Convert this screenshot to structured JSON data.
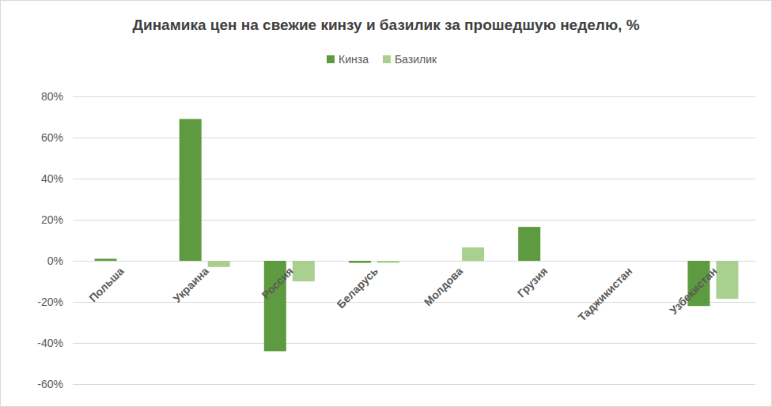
{
  "chart_data": {
    "type": "bar",
    "title": "Динамика цен на свежие кинзу и базилик за прошедшую неделю, %",
    "categories": [
      "Польша",
      "Украина",
      "Россия",
      "Беларусь",
      "Молдова",
      "Грузия",
      "Таджикистан",
      "Узбекистан"
    ],
    "series": [
      {
        "name": "Кинза",
        "color": "#5e9a3f",
        "values": [
          1,
          69,
          -44,
          -1,
          0,
          16.5,
          0,
          -22
        ]
      },
      {
        "name": "Базилик",
        "color": "#a9d08e",
        "values": [
          0,
          -3,
          -10,
          -1,
          6.5,
          0,
          0,
          -18.5
        ]
      }
    ],
    "ylim": [
      -60,
      80
    ],
    "yticks": [
      {
        "value": -60,
        "label": "-60%"
      },
      {
        "value": -40,
        "label": "-40%"
      },
      {
        "value": -20,
        "label": "-20%"
      },
      {
        "value": 0,
        "label": "0%"
      },
      {
        "value": 20,
        "label": "20%"
      },
      {
        "value": 40,
        "label": "40%"
      },
      {
        "value": 60,
        "label": "60%"
      },
      {
        "value": 80,
        "label": "80%"
      }
    ],
    "grid": true,
    "legend": "top"
  }
}
